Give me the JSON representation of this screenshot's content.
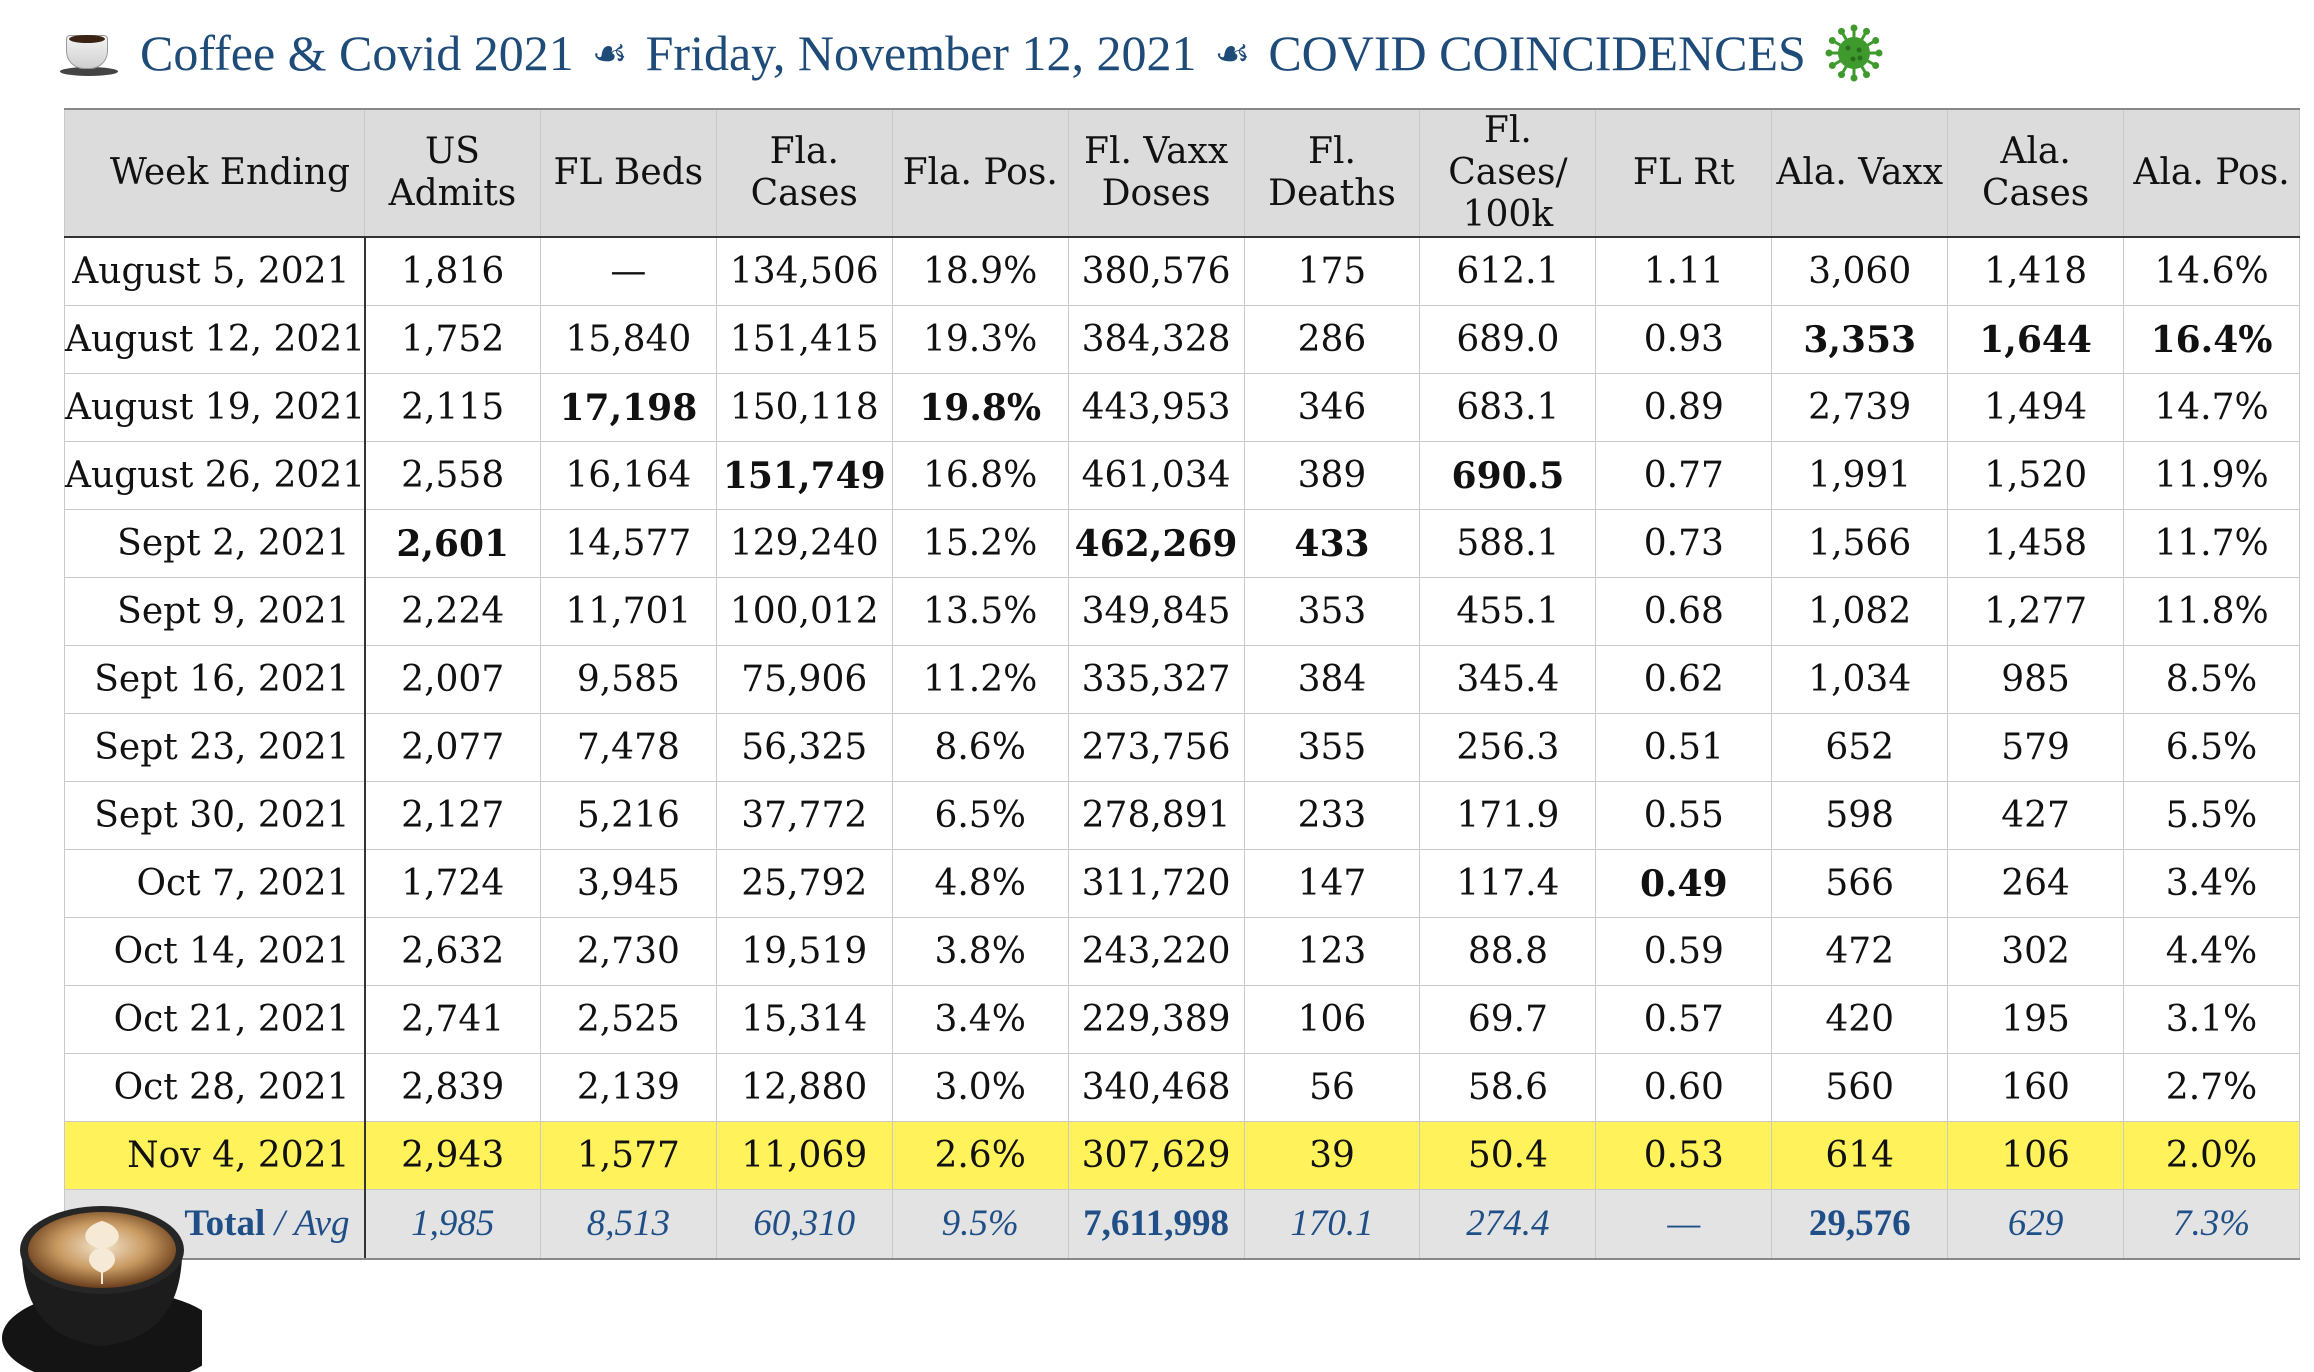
{
  "title": {
    "part1": "Coffee & Covid 2021",
    "part2": "Friday, November 12, 2021",
    "part3": "COVID COINCIDENCES",
    "separator": "☙",
    "cup_icon": "coffee-cup-icon",
    "virus_icon": "virus-icon",
    "virus_color": "#3f9a2e"
  },
  "chart_data": {
    "type": "table",
    "columns": [
      "Week Ending",
      "US Admits",
      "FL Beds",
      "Fla. Cases",
      "Fla. Pos.",
      "Fl. Vaxx Doses",
      "Fl. Deaths",
      "Fl. Cases/ 100k",
      "FL Rt",
      "Ala. Vaxx",
      "Ala. Cases",
      "Ala. Pos."
    ],
    "rows": [
      {
        "cells": [
          "August 5, 2021",
          "1,816",
          "—",
          "134,506",
          "18.9%",
          "380,576",
          "175",
          "612.1",
          "1.11",
          "3,060",
          "1,418",
          "14.6%"
        ],
        "bold": []
      },
      {
        "cells": [
          "August 12, 2021",
          "1,752",
          "15,840",
          "151,415",
          "19.3%",
          "384,328",
          "286",
          "689.0",
          "0.93",
          "3,353",
          "1,644",
          "16.4%"
        ],
        "bold": [
          9,
          10,
          11
        ]
      },
      {
        "cells": [
          "August 19, 2021",
          "2,115",
          "17,198",
          "150,118",
          "19.8%",
          "443,953",
          "346",
          "683.1",
          "0.89",
          "2,739",
          "1,494",
          "14.7%"
        ],
        "bold": [
          2,
          4
        ]
      },
      {
        "cells": [
          "August 26, 2021",
          "2,558",
          "16,164",
          "151,749",
          "16.8%",
          "461,034",
          "389",
          "690.5",
          "0.77",
          "1,991",
          "1,520",
          "11.9%"
        ],
        "bold": [
          3,
          7
        ]
      },
      {
        "cells": [
          "Sept 2, 2021",
          "2,601",
          "14,577",
          "129,240",
          "15.2%",
          "462,269",
          "433",
          "588.1",
          "0.73",
          "1,566",
          "1,458",
          "11.7%"
        ],
        "bold": [
          1,
          5,
          6
        ]
      },
      {
        "cells": [
          "Sept 9, 2021",
          "2,224",
          "11,701",
          "100,012",
          "13.5%",
          "349,845",
          "353",
          "455.1",
          "0.68",
          "1,082",
          "1,277",
          "11.8%"
        ],
        "bold": []
      },
      {
        "cells": [
          "Sept 16, 2021",
          "2,007",
          "9,585",
          "75,906",
          "11.2%",
          "335,327",
          "384",
          "345.4",
          "0.62",
          "1,034",
          "985",
          "8.5%"
        ],
        "bold": []
      },
      {
        "cells": [
          "Sept 23, 2021",
          "2,077",
          "7,478",
          "56,325",
          "8.6%",
          "273,756",
          "355",
          "256.3",
          "0.51",
          "652",
          "579",
          "6.5%"
        ],
        "bold": []
      },
      {
        "cells": [
          "Sept 30, 2021",
          "2,127",
          "5,216",
          "37,772",
          "6.5%",
          "278,891",
          "233",
          "171.9",
          "0.55",
          "598",
          "427",
          "5.5%"
        ],
        "bold": []
      },
      {
        "cells": [
          "Oct 7, 2021",
          "1,724",
          "3,945",
          "25,792",
          "4.8%",
          "311,720",
          "147",
          "117.4",
          "0.49",
          "566",
          "264",
          "3.4%"
        ],
        "bold": [
          8
        ]
      },
      {
        "cells": [
          "Oct 14, 2021",
          "2,632",
          "2,730",
          "19,519",
          "3.8%",
          "243,220",
          "123",
          "88.8",
          "0.59",
          "472",
          "302",
          "4.4%"
        ],
        "bold": []
      },
      {
        "cells": [
          "Oct 21, 2021",
          "2,741",
          "2,525",
          "15,314",
          "3.4%",
          "229,389",
          "106",
          "69.7",
          "0.57",
          "420",
          "195",
          "3.1%"
        ],
        "bold": []
      },
      {
        "cells": [
          "Oct 28, 2021",
          "2,839",
          "2,139",
          "12,880",
          "3.0%",
          "340,468",
          "56",
          "58.6",
          "0.60",
          "560",
          "160",
          "2.7%"
        ],
        "bold": []
      },
      {
        "cells": [
          "Nov 4, 2021",
          "2,943",
          "1,577",
          "11,069",
          "2.6%",
          "307,629",
          "39",
          "50.4",
          "0.53",
          "614",
          "106",
          "2.0%"
        ],
        "bold": [],
        "highlight": true,
        "highlight_color": "#fff25a"
      }
    ],
    "total": {
      "label": "Total",
      "label_sep": "/",
      "label_avg": "Avg",
      "cells": [
        "1,985",
        "8,513",
        "60,310",
        "9.5%",
        "7,611,998",
        "170.1",
        "274.4",
        "—",
        "29,576",
        "629",
        "7.3%"
      ],
      "bold": [
        5,
        9
      ],
      "color": "#1f4f86"
    }
  },
  "images": {
    "coffee_photo": "latte-art-coffee-cup"
  }
}
